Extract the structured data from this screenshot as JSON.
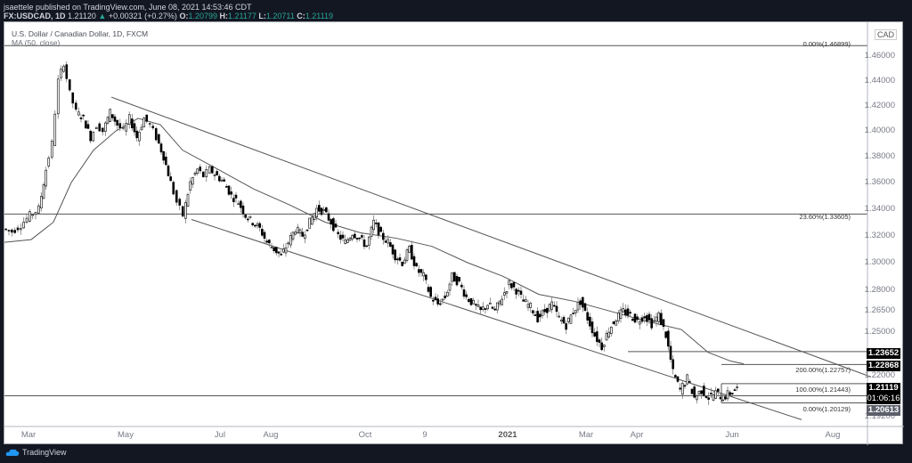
{
  "header": {
    "line1": "jsaettele published on TradingView.com, June 08, 2021 14:53:46 CDT",
    "symbol": "FX:USDCAD, 1D",
    "last": "1.21120",
    "change_arrow": "▲",
    "change": "+0.00321 (+0.27%)",
    "o_label": "O:",
    "o": "1.20799",
    "h_label": "H:",
    "h": "1.21177",
    "l_label": "L:",
    "l": "1.20711",
    "c_label": "C:",
    "c": "1.21119"
  },
  "legend": {
    "title": "U.S. Dollar / Canadian Dollar, 1D, FXCM",
    "indicator": "MA (50, close)"
  },
  "axis": {
    "currency": "CAD",
    "price_labels": [
      "1.46000",
      "1.44000",
      "1.42000",
      "1.40000",
      "1.38000",
      "1.36000",
      "1.34000",
      "1.32000",
      "1.30000",
      "1.28000",
      "1.26500",
      "1.25000",
      "1.22000",
      "1.19200"
    ],
    "time_labels": [
      "Mar",
      "May",
      "Jul",
      "Aug",
      "Oct",
      "9",
      "2021",
      "Mar",
      "Apr",
      "Jun",
      "Aug"
    ]
  },
  "tags": {
    "t1": "1.23652",
    "t2": "1.22868",
    "t3_price": "1.21119",
    "t3_time": "01:06:16",
    "t4": "1.20613"
  },
  "fib_labels": {
    "top0": "0.00%(1.46899)",
    "r236": "23.60%(1.33605)",
    "e200": "200.00%(1.22757)",
    "e100": "100.00%(1.21443)",
    "e0": "0.00%(1.20129)"
  },
  "branding": {
    "logo_text": "TradingView"
  },
  "colors": {
    "up": "#26a69a",
    "background": "#131722",
    "candle": "#000000"
  },
  "chart_data": {
    "type": "line",
    "title": "U.S. Dollar / Canadian Dollar, 1D, FXCM",
    "series": [
      {
        "name": "USDCAD close (approx.)",
        "x": [
          0,
          10,
          20,
          30,
          40,
          48,
          55,
          62,
          68,
          75,
          82,
          90,
          98,
          105,
          112,
          120,
          128,
          135,
          142,
          150,
          158,
          165,
          172,
          180,
          188,
          195,
          202,
          210,
          218,
          225,
          232,
          240,
          248,
          256,
          264,
          272,
          280,
          288,
          296,
          304,
          312,
          320,
          328,
          336,
          344,
          352,
          360,
          368,
          376,
          384,
          392,
          400,
          408,
          416,
          424,
          432,
          440,
          448,
          456,
          464,
          472,
          480,
          488,
          496,
          504,
          512,
          520,
          528,
          536,
          544,
          552,
          560,
          568,
          576,
          584,
          592,
          600,
          608,
          616,
          624,
          632,
          640,
          648,
          656,
          664,
          672,
          680,
          688,
          696,
          704,
          712,
          720,
          728,
          736,
          744,
          752,
          760,
          768,
          776,
          784,
          792,
          800,
          808,
          816,
          824
        ],
        "values": [
          1.325,
          1.323,
          1.328,
          1.335,
          1.34,
          1.37,
          1.39,
          1.44,
          1.455,
          1.43,
          1.415,
          1.41,
          1.395,
          1.405,
          1.4,
          1.415,
          1.405,
          1.4,
          1.41,
          1.395,
          1.41,
          1.405,
          1.395,
          1.38,
          1.36,
          1.345,
          1.335,
          1.36,
          1.37,
          1.365,
          1.37,
          1.365,
          1.36,
          1.35,
          1.345,
          1.335,
          1.33,
          1.325,
          1.315,
          1.31,
          1.305,
          1.315,
          1.325,
          1.32,
          1.33,
          1.34,
          1.338,
          1.33,
          1.32,
          1.315,
          1.322,
          1.318,
          1.312,
          1.33,
          1.32,
          1.315,
          1.305,
          1.3,
          1.31,
          1.295,
          1.29,
          1.275,
          1.27,
          1.275,
          1.29,
          1.285,
          1.275,
          1.27,
          1.265,
          1.27,
          1.265,
          1.275,
          1.285,
          1.28,
          1.272,
          1.268,
          1.26,
          1.265,
          1.27,
          1.26,
          1.255,
          1.265,
          1.272,
          1.26,
          1.248,
          1.24,
          1.252,
          1.26,
          1.265,
          1.262,
          1.258,
          1.262,
          1.256,
          1.262,
          1.248,
          1.222,
          1.21,
          1.218,
          1.205,
          1.21,
          1.205,
          1.208,
          1.205,
          1.208,
          1.211
        ]
      },
      {
        "name": "MA (50, close)",
        "x": [
          0,
          30,
          55,
          75,
          100,
          125,
          150,
          175,
          200,
          240,
          280,
          320,
          360,
          400,
          440,
          480,
          520,
          560,
          600,
          640,
          680,
          720,
          760,
          790,
          815,
          830
        ],
        "values": [
          1.315,
          1.317,
          1.33,
          1.36,
          1.385,
          1.4,
          1.41,
          1.405,
          1.385,
          1.37,
          1.355,
          1.343,
          1.33,
          1.322,
          1.318,
          1.312,
          1.3,
          1.29,
          1.277,
          1.272,
          1.265,
          1.258,
          1.252,
          1.236,
          1.23,
          1.228
        ]
      }
    ],
    "annotations": [
      {
        "type": "trendline",
        "name": "channel-top",
        "from": [
          120,
          1.427
        ],
        "to": [
          973,
          1.219
        ]
      },
      {
        "type": "trendline",
        "name": "channel-bottom",
        "from": [
          210,
          1.332
        ],
        "to": [
          895,
          1.19
        ]
      },
      {
        "type": "hline",
        "name": "fib-0-top",
        "price": 1.46899,
        "label": "0.00%(1.46899)"
      },
      {
        "type": "hline",
        "name": "fib-23.6",
        "price": 1.33605,
        "label": "23.60%(1.33605)"
      },
      {
        "type": "hline",
        "name": "ext-200",
        "price": 1.22757,
        "label": "200.00%(1.22757)"
      },
      {
        "type": "hline",
        "name": "ext-100",
        "price": 1.21443,
        "label": "100.00%(1.21443)"
      },
      {
        "type": "hline",
        "name": "ext-0",
        "price": 1.20129,
        "label": "0.00%(1.20129)"
      },
      {
        "type": "hline",
        "name": "support",
        "price": 1.23652
      },
      {
        "type": "hline",
        "name": "level",
        "price": 1.20613
      }
    ],
    "xlabel": "",
    "ylabel": "CAD",
    "ylim": [
      1.19,
      1.48
    ],
    "log_scale": true,
    "grid": false,
    "legend_position": "top-left"
  }
}
